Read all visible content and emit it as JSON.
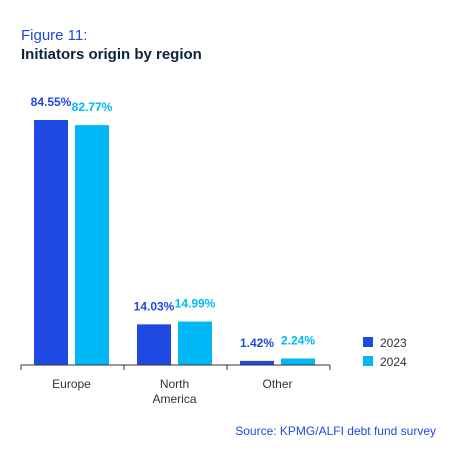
{
  "figure": {
    "number": "Figure 11:",
    "title": "Initiators origin by region",
    "source": "Source: KPMG/ALFI debt fund survey"
  },
  "colors": {
    "s2023": "#1e49e2",
    "s2024": "#00b8f5",
    "axis": "#333333",
    "title": "#0c233c"
  },
  "chart_data": {
    "type": "bar",
    "categories": [
      "Europe",
      "North America",
      "Other"
    ],
    "category_lines": [
      [
        "Europe"
      ],
      [
        "North",
        "America"
      ],
      [
        "Other"
      ]
    ],
    "series": [
      {
        "name": "2023",
        "values": [
          84.55,
          14.03,
          1.42
        ],
        "labels": [
          "84.55%",
          "14.03%",
          "1.42%"
        ]
      },
      {
        "name": "2024",
        "values": [
          82.77,
          14.99,
          2.24
        ],
        "labels": [
          "82.77%",
          "14.99%",
          "2.24%"
        ]
      }
    ],
    "ylim": [
      0,
      100
    ],
    "grid": false,
    "legend": "bottom-right"
  }
}
